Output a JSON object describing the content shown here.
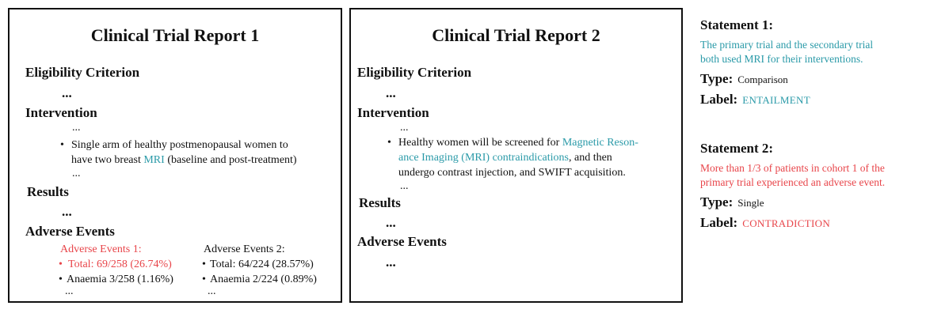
{
  "report1": {
    "title": "Clinical Trial Report 1",
    "eligibility_heading": "Eligibility Criterion",
    "eligibility_ellipsis": "...",
    "intervention_heading": "Intervention",
    "intervention_ellipsis_top": "...",
    "intervention_bullet_line1": "Single arm of healthy postmenopausal women to",
    "intervention_bullet_line2_pre": "have two breast ",
    "intervention_bullet_line2_accent": "MRI",
    "intervention_bullet_line2_post": " (baseline and post-treatment)",
    "intervention_ellipsis_bottom": "...",
    "results_heading": "Results",
    "results_ellipsis": "...",
    "adverse_heading": "Adverse Events",
    "ae1": {
      "title": "Adverse Events 1:",
      "total": "Total: 69/258 (26.74%)",
      "anaemia": "Anaemia 3/258 (1.16%)",
      "ellipsis": "..."
    },
    "ae2": {
      "title": "Adverse Events 2:",
      "total": "Total: 64/224 (28.57%)",
      "anaemia": "Anaemia 2/224 (0.89%)",
      "ellipsis": "..."
    }
  },
  "report2": {
    "title": "Clinical Trial Report 2",
    "eligibility_heading": "Eligibility Criterion",
    "eligibility_ellipsis": "...",
    "intervention_heading": "Intervention",
    "intervention_ellipsis_top": "...",
    "bullet_line1_pre": "Healthy women will be screened for ",
    "bullet_line1_accent": "Magnetic Reson-",
    "bullet_line2_accent": "ance Imaging (MRI) contraindications",
    "bullet_line2_post": ", and then",
    "bullet_line3": "undergo contrast injection, and SWIFT acquisition.",
    "intervention_ellipsis_bottom": "...",
    "results_heading": "Results",
    "results_ellipsis": "...",
    "adverse_heading": "Adverse Events",
    "adverse_ellipsis": "..."
  },
  "statements": [
    {
      "heading": "Statement 1:",
      "line1": "The primary trial and the secondary trial",
      "line2_pre": "both used ",
      "line2_accent": "MRI",
      "line2_post": " for their interventions.",
      "type_key": "Type:",
      "type_value": "Comparison",
      "label_key": "Label:",
      "label_value": "ENTAILMENT"
    },
    {
      "heading": "Statement 2:",
      "line1": "More than 1/3 of patients in cohort 1 of the",
      "line2": "primary trial experienced an adverse event.",
      "type_key": "Type:",
      "type_value": "Single",
      "label_key": "Label:",
      "label_value": "CONTRADICTION"
    }
  ],
  "bullet_glyph": "•",
  "colors": {
    "accent": "#2a9aa8",
    "alert": "#e8454a",
    "text": "#111111"
  }
}
